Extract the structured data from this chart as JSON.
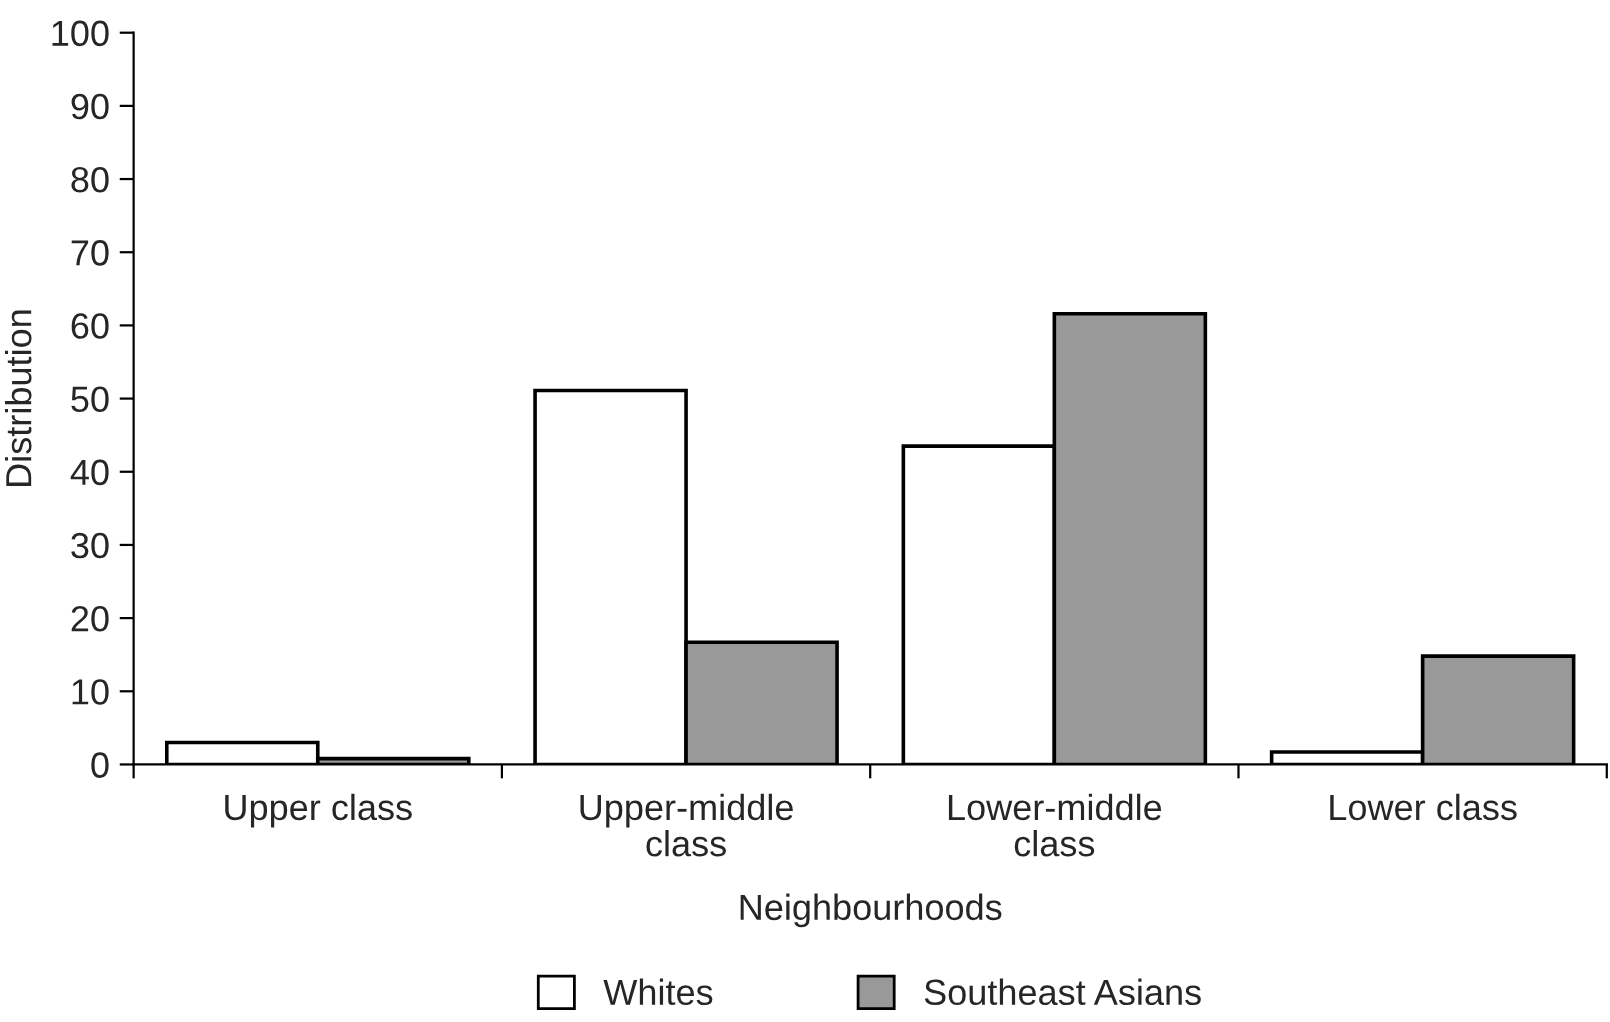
{
  "chart_data": {
    "type": "bar",
    "xlabel": "Neighbourhoods",
    "ylabel": "Distribution",
    "categories": [
      "Upper class",
      "Upper-middle\nclass",
      "Lower-middle\nclass",
      "Lower class"
    ],
    "series": [
      {
        "name": "Whites",
        "color": "#ffffff",
        "values": [
          3.0,
          51.1,
          43.5,
          1.7
        ]
      },
      {
        "name": "Southeast Asians",
        "color": "#999999",
        "values": [
          0.8,
          16.7,
          61.6,
          14.8
        ]
      }
    ],
    "ylim": [
      0,
      100
    ],
    "yticks": [
      0,
      10,
      20,
      30,
      40,
      50,
      60,
      70,
      80,
      90,
      100
    ],
    "grid": false,
    "legend": "bottom"
  }
}
